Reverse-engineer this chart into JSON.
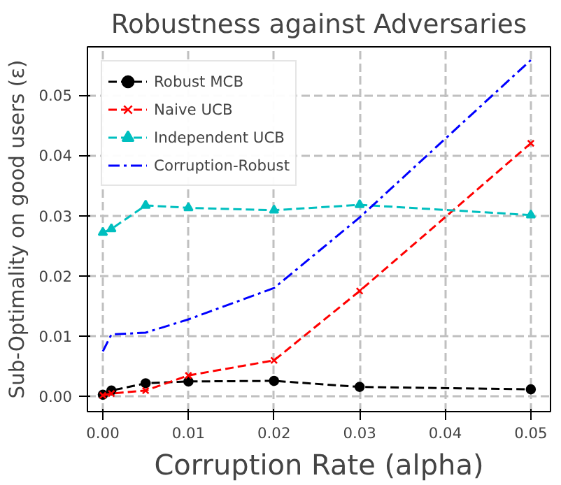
{
  "chart_data": {
    "type": "line",
    "title": "Robustness against Adversaries",
    "xlabel": "Corruption Rate (alpha)",
    "ylabel": "Sub-Optimality on good users (ε)",
    "x": [
      0,
      0.001,
      0.005,
      0.01,
      0.02,
      0.03,
      0.05
    ],
    "series": [
      {
        "name": "Robust MCB",
        "color": "#000000",
        "marker": "circle",
        "line_style": "dashed",
        "values": [
          0.0003,
          0.001,
          0.0022,
          0.0025,
          0.0026,
          0.0016,
          0.0012
        ]
      },
      {
        "name": "Naive UCB",
        "color": "#ff0000",
        "marker": "cross",
        "line_style": "dashed",
        "values": [
          0.0002,
          0.0005,
          0.001,
          0.0035,
          0.006,
          0.0175,
          0.042
        ]
      },
      {
        "name": "Independent UCB",
        "color": "#00bfbf",
        "marker": "triangle",
        "line_style": "dashed",
        "values": [
          0.0272,
          0.0278,
          0.0317,
          0.0313,
          0.0309,
          0.0318,
          0.0301
        ]
      },
      {
        "name": "Corruption-Robust",
        "color": "#0000ff",
        "marker": "none",
        "line_style": "dashdot",
        "values": [
          0.0075,
          0.0103,
          0.0106,
          0.0128,
          0.018,
          0.0297,
          0.0558
        ]
      }
    ],
    "xlim": [
      -0.0018,
      0.0523
    ],
    "ylim": [
      -0.0025,
      0.058
    ],
    "xticks": [
      {
        "value": 0,
        "label": "0.00"
      },
      {
        "value": 0.01,
        "label": "0.01"
      },
      {
        "value": 0.02,
        "label": "0.02"
      },
      {
        "value": 0.03,
        "label": "0.03"
      },
      {
        "value": 0.04,
        "label": "0.04"
      },
      {
        "value": 0.05,
        "label": "0.05"
      }
    ],
    "yticks": [
      {
        "value": 0,
        "label": "0.00"
      },
      {
        "value": 0.01,
        "label": "0.01"
      },
      {
        "value": 0.02,
        "label": "0.02"
      },
      {
        "value": 0.03,
        "label": "0.03"
      },
      {
        "value": 0.04,
        "label": "0.04"
      },
      {
        "value": 0.05,
        "label": "0.05"
      }
    ],
    "grid": true,
    "legend": "top left"
  }
}
